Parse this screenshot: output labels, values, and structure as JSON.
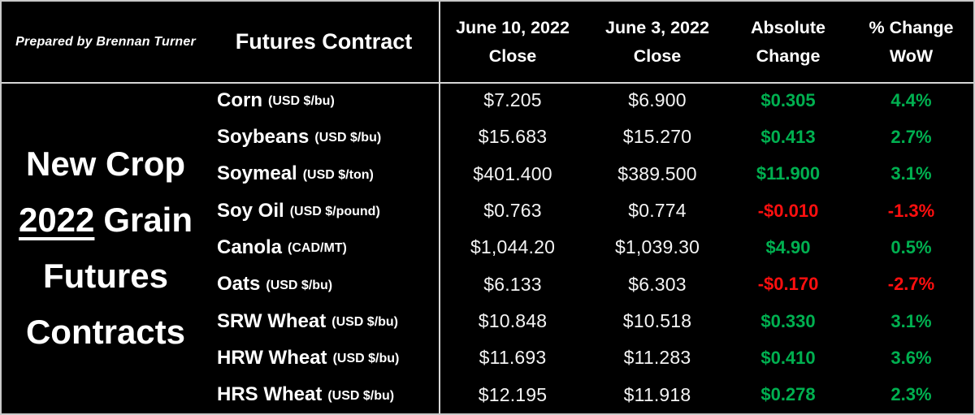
{
  "prepared_by": "Prepared by Brennan Turner",
  "title": {
    "line1": "New Crop",
    "line2_underlined": "2022",
    "line2_rest": "Grain",
    "line3": "Futures",
    "line4": "Contracts"
  },
  "header": {
    "contract_label": "Futures Contract",
    "col1_line1": "June 10, 2022",
    "col1_line2": "Close",
    "col2_line1": "June 3, 2022",
    "col2_line2": "Close",
    "col3_line1": "Absolute",
    "col3_line2": "Change",
    "col4_line1": "% Change",
    "col4_line2": "WoW"
  },
  "colors": {
    "positive": "#00b050",
    "negative": "#ff0f0f",
    "text": "#ffffff",
    "background": "#000000",
    "gridline": "#d6d6d6"
  },
  "rows": [
    {
      "name": "Corn",
      "unit": "(USD $/bu)",
      "close_jun10": "$7.205",
      "close_jun3": "$6.900",
      "abs_change": "$0.305",
      "pct_change": "4.4%",
      "direction": "up"
    },
    {
      "name": "Soybeans",
      "unit": "(USD $/bu)",
      "close_jun10": "$15.683",
      "close_jun3": "$15.270",
      "abs_change": "$0.413",
      "pct_change": "2.7%",
      "direction": "up"
    },
    {
      "name": "Soymeal",
      "unit": "(USD $/ton)",
      "close_jun10": "$401.400",
      "close_jun3": "$389.500",
      "abs_change": "$11.900",
      "pct_change": "3.1%",
      "direction": "up"
    },
    {
      "name": "Soy Oil",
      "unit": "(USD $/pound)",
      "close_jun10": "$0.763",
      "close_jun3": "$0.774",
      "abs_change": "-$0.010",
      "pct_change": "-1.3%",
      "direction": "down"
    },
    {
      "name": "Canola",
      "unit": "(CAD/MT)",
      "close_jun10": "$1,044.20",
      "close_jun3": "$1,039.30",
      "abs_change": "$4.90",
      "pct_change": "0.5%",
      "direction": "up"
    },
    {
      "name": "Oats",
      "unit": "(USD $/bu)",
      "close_jun10": "$6.133",
      "close_jun3": "$6.303",
      "abs_change": "-$0.170",
      "pct_change": "-2.7%",
      "direction": "down"
    },
    {
      "name": "SRW Wheat",
      "unit": "(USD $/bu)",
      "close_jun10": "$10.848",
      "close_jun3": "$10.518",
      "abs_change": "$0.330",
      "pct_change": "3.1%",
      "direction": "up"
    },
    {
      "name": "HRW Wheat",
      "unit": "(USD $/bu)",
      "close_jun10": "$11.693",
      "close_jun3": "$11.283",
      "abs_change": "$0.410",
      "pct_change": "3.6%",
      "direction": "up"
    },
    {
      "name": "HRS Wheat",
      "unit": "(USD $/bu)",
      "close_jun10": "$12.195",
      "close_jun3": "$11.918",
      "abs_change": "$0.278",
      "pct_change": "2.3%",
      "direction": "up"
    }
  ],
  "chart_data": {
    "type": "table",
    "title": "New Crop 2022 Grain Futures Contracts",
    "prepared_by": "Prepared by Brennan Turner",
    "columns": [
      "Futures Contract",
      "June 10, 2022 Close",
      "June 3, 2022 Close",
      "Absolute Change",
      "% Change WoW"
    ],
    "rows": [
      [
        "Corn (USD $/bu)",
        7.205,
        6.9,
        0.305,
        4.4
      ],
      [
        "Soybeans (USD $/bu)",
        15.683,
        15.27,
        0.413,
        2.7
      ],
      [
        "Soymeal (USD $/ton)",
        401.4,
        389.5,
        11.9,
        3.1
      ],
      [
        "Soy Oil (USD $/pound)",
        0.763,
        0.774,
        -0.01,
        -1.3
      ],
      [
        "Canola (CAD/MT)",
        1044.2,
        1039.3,
        4.9,
        0.5
      ],
      [
        "Oats (USD $/bu)",
        6.133,
        6.303,
        -0.17,
        -2.7
      ],
      [
        "SRW Wheat (USD $/bu)",
        10.848,
        10.518,
        0.33,
        3.1
      ],
      [
        "HRW Wheat (USD $/bu)",
        11.693,
        11.283,
        0.41,
        3.6
      ],
      [
        "HRS Wheat (USD $/bu)",
        12.195,
        11.918,
        0.278,
        2.3
      ]
    ],
    "notes": "Positive changes shown in green, negative in red"
  }
}
